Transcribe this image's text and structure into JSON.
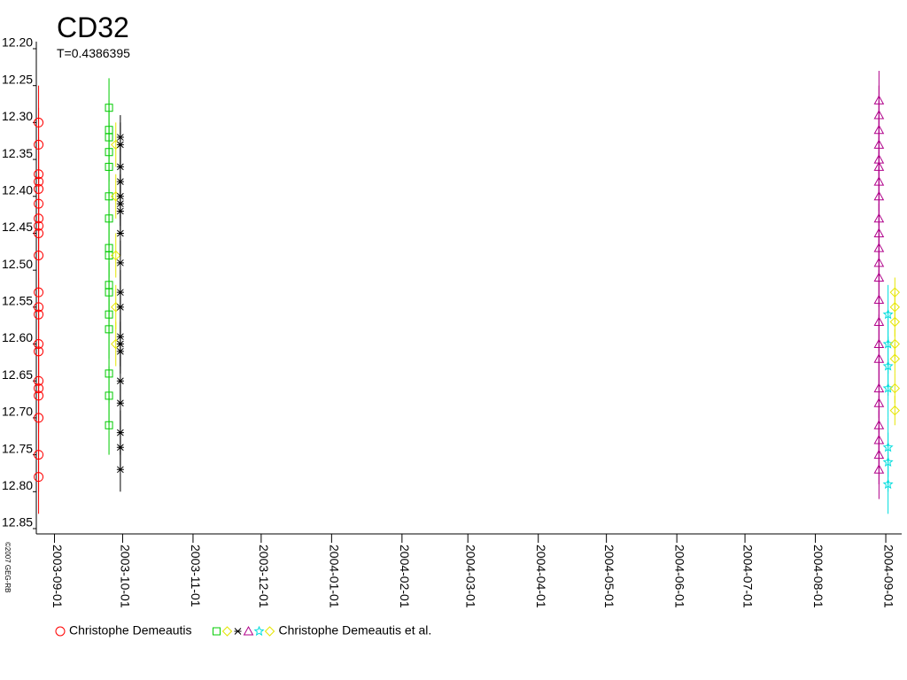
{
  "chart_data": {
    "type": "scatter",
    "title": "CD32",
    "subtitle": "T=0.4386395",
    "credit": "©2007 GEG-RB",
    "ylim": [
      12.2,
      12.85
    ],
    "y_inverted": true,
    "yticks": [
      {
        "value": 12.2,
        "label": "12.20"
      },
      12.25,
      {
        "value": 12.3,
        "label": "12.30"
      },
      12.35,
      {
        "value": 12.4,
        "label": "12.40"
      },
      12.45,
      {
        "value": 12.5,
        "label": "12.50"
      },
      12.55,
      {
        "value": 12.6,
        "label": "12.60"
      },
      12.65,
      {
        "value": 12.7,
        "label": "12.70"
      },
      12.75,
      {
        "value": 12.8,
        "label": "12.80"
      },
      12.85
    ],
    "xlim": [
      "2003-08-24",
      "2004-09-08"
    ],
    "xticks": [
      "2003-09-01",
      "2003-10-01",
      "2003-11-01",
      "2003-12-01",
      "2004-01-01",
      "2004-02-01",
      "2004-03-01",
      "2004-04-01",
      "2004-05-01",
      "2004-06-01",
      "2004-07-01",
      "2004-08-01",
      "2004-09-01"
    ],
    "observers": [
      {
        "name": "Christophe Demeautis",
        "series": [
          {
            "marker": "circle",
            "color": "#ff0000",
            "date": "2003-08-25",
            "error": 0.05,
            "values": [
              12.3,
              12.33,
              12.37,
              12.38,
              12.39,
              12.41,
              12.43,
              12.44,
              12.45,
              12.48,
              12.53,
              12.55,
              12.56,
              12.6,
              12.61,
              12.65,
              12.66,
              12.67,
              12.7,
              12.75,
              12.78
            ]
          }
        ]
      },
      {
        "name": "Christophe Demeautis et al.",
        "series": [
          {
            "marker": "square",
            "color": "#00cc00",
            "date": "2003-09-25",
            "error": 0.04,
            "values": [
              12.28,
              12.31,
              12.32,
              12.34,
              12.36,
              12.4,
              12.43,
              12.47,
              12.48,
              12.52,
              12.53,
              12.56,
              12.58,
              12.64,
              12.67,
              12.71
            ]
          },
          {
            "marker": "diamond",
            "color": "#e6e600",
            "date": "2003-09-28",
            "error": 0.03,
            "values": [
              12.33,
              12.4,
              12.48,
              12.55,
              12.6
            ]
          },
          {
            "marker": "cross",
            "color": "#000000",
            "date": "2003-09-30",
            "error": 0.03,
            "values": [
              12.32,
              12.33,
              12.36,
              12.38,
              12.4,
              12.41,
              12.42,
              12.45,
              12.49,
              12.53,
              12.55,
              12.59,
              12.6,
              12.61,
              12.65,
              12.68,
              12.72,
              12.74,
              12.77
            ]
          },
          {
            "marker": "triangle",
            "color": "#b0008a",
            "date": "2004-08-29",
            "error": 0.04,
            "values": [
              12.27,
              12.29,
              12.31,
              12.33,
              12.35,
              12.36,
              12.38,
              12.4,
              12.43,
              12.45,
              12.47,
              12.49,
              12.51,
              12.54,
              12.57,
              12.6,
              12.62,
              12.66,
              12.68,
              12.71,
              12.73,
              12.75,
              12.77
            ]
          },
          {
            "marker": "star",
            "color": "#00dddd",
            "date": "2004-09-02",
            "error": 0.04,
            "values": [
              12.56,
              12.6,
              12.63,
              12.66,
              12.74,
              12.76,
              12.79
            ]
          },
          {
            "marker": "diamond",
            "color": "#e6e600",
            "date": "2004-09-05",
            "error": 0.02,
            "values": [
              12.53,
              12.55,
              12.57,
              12.6,
              12.62,
              12.66,
              12.69
            ]
          }
        ]
      }
    ]
  }
}
